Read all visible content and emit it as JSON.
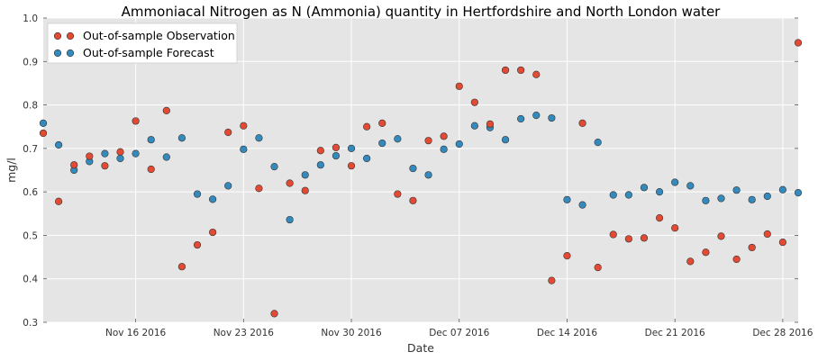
{
  "chart_data": {
    "type": "scatter",
    "title": "Ammoniacal Nitrogen as N (Ammonia) quantity in Hertfordshire and North London water",
    "xlabel": "Date",
    "ylabel": "mg/l",
    "xlim": [
      "2016-11-10",
      "2016-12-29"
    ],
    "ylim": [
      0.3,
      1.0
    ],
    "y_ticks": [
      0.3,
      0.4,
      0.5,
      0.6,
      0.7,
      0.8,
      0.9,
      1.0
    ],
    "y_tick_labels": [
      "0.3",
      "0.4",
      "0.5",
      "0.6",
      "0.7",
      "0.8",
      "0.9",
      "1.0"
    ],
    "x_ticks": [
      "2016-11-16",
      "2016-11-23",
      "2016-11-30",
      "2016-12-07",
      "2016-12-14",
      "2016-12-21",
      "2016-12-28"
    ],
    "x_tick_labels": [
      "Nov 16 2016",
      "Nov 23 2016",
      "Nov 30 2016",
      "Dec 07 2016",
      "Dec 14 2016",
      "Dec 21 2016",
      "Dec 28 2016"
    ],
    "grid": true,
    "legend_position": "top-left",
    "x": [
      "2016-11-10",
      "2016-11-11",
      "2016-11-12",
      "2016-11-13",
      "2016-11-14",
      "2016-11-15",
      "2016-11-16",
      "2016-11-17",
      "2016-11-18",
      "2016-11-19",
      "2016-11-20",
      "2016-11-21",
      "2016-11-22",
      "2016-11-23",
      "2016-11-24",
      "2016-11-25",
      "2016-11-26",
      "2016-11-27",
      "2016-11-28",
      "2016-11-29",
      "2016-11-30",
      "2016-12-01",
      "2016-12-02",
      "2016-12-03",
      "2016-12-04",
      "2016-12-05",
      "2016-12-06",
      "2016-12-07",
      "2016-12-08",
      "2016-12-09",
      "2016-12-10",
      "2016-12-11",
      "2016-12-12",
      "2016-12-13",
      "2016-12-14",
      "2016-12-15",
      "2016-12-16",
      "2016-12-17",
      "2016-12-18",
      "2016-12-19",
      "2016-12-20",
      "2016-12-21",
      "2016-12-22",
      "2016-12-23",
      "2016-12-24",
      "2016-12-25",
      "2016-12-26",
      "2016-12-27",
      "2016-12-28",
      "2016-12-29"
    ],
    "series": [
      {
        "name": "Out-of-sample Observation",
        "color": "#e24a33",
        "values": [
          0.735,
          0.578,
          0.662,
          0.682,
          0.66,
          0.692,
          0.763,
          0.652,
          0.787,
          0.428,
          0.478,
          0.507,
          0.737,
          0.752,
          0.608,
          0.32,
          0.62,
          0.603,
          0.695,
          0.702,
          0.66,
          0.75,
          0.758,
          0.595,
          0.58,
          0.718,
          0.728,
          0.843,
          0.806,
          0.756,
          0.88,
          0.88,
          0.87,
          0.396,
          0.453,
          0.758,
          0.426,
          0.502,
          0.492,
          0.494,
          0.54,
          0.517,
          0.44,
          0.461,
          0.498,
          0.445,
          0.472,
          0.503,
          0.484,
          0.943
        ]
      },
      {
        "name": "Out-of-sample Forecast",
        "color": "#348abd",
        "values": [
          0.758,
          0.708,
          0.65,
          0.67,
          0.688,
          0.677,
          0.688,
          0.72,
          0.68,
          0.724,
          0.595,
          0.583,
          0.614,
          0.698,
          0.724,
          0.658,
          0.536,
          0.639,
          0.662,
          0.683,
          0.7,
          0.677,
          0.712,
          0.722,
          0.654,
          0.639,
          0.698,
          0.71,
          0.752,
          0.748,
          0.72,
          0.768,
          0.776,
          0.77,
          0.582,
          0.57,
          0.714,
          0.593,
          0.593,
          0.61,
          0.6,
          0.622,
          0.614,
          0.58,
          0.585,
          0.604,
          0.582,
          0.59,
          0.605,
          0.598
        ]
      }
    ]
  }
}
